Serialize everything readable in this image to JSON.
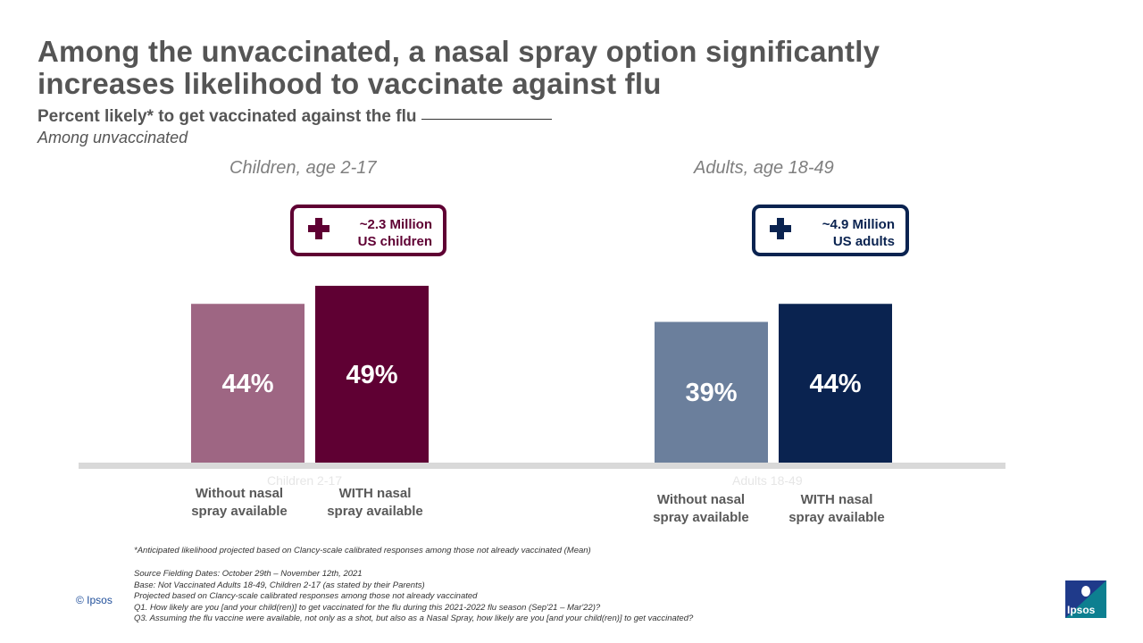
{
  "title": {
    "line1": "Among the unvaccinated, a nasal spray option significantly",
    "line2": "increases likelihood to vaccinate against flu"
  },
  "subtitle": "Percent likely*  to get vaccinated against the flu",
  "base_note": "Among unvaccinated",
  "groups": [
    {
      "label": "Children, age 2-17",
      "ghost_label": "Children 2-17",
      "callout": {
        "line1": "~2.3 Million",
        "line2": "US children",
        "color": "#5f0033"
      },
      "bar_labels": [
        {
          "line1": "Without nasal",
          "line2": "spray available"
        },
        {
          "line1": "WITH nasal",
          "line2": "spray available"
        }
      ]
    },
    {
      "label": "Adults, age 18-49",
      "ghost_label": "Adults 18-49",
      "callout": {
        "line1": "~4.9 Million",
        "line2": "US adults",
        "color": "#0a2350"
      },
      "bar_labels": [
        {
          "line1": "Without nasal",
          "line2": "spray available"
        },
        {
          "line1": "WITH nasal",
          "line2": "spray available"
        }
      ]
    }
  ],
  "chart_data": {
    "type": "bar",
    "categories": [
      "Children 2-17",
      "Adults 18-49"
    ],
    "series": [
      {
        "name": "Without nasal spray available",
        "values": [
          44,
          39
        ],
        "colors": [
          "#9e6683",
          "#6b7f9c"
        ]
      },
      {
        "name": "WITH nasal spray available",
        "values": [
          49,
          44
        ],
        "colors": [
          "#5f0033",
          "#0a2350"
        ]
      }
    ],
    "data_labels": [
      [
        "44%",
        "39%"
      ],
      [
        "49%",
        "44%"
      ]
    ],
    "ylim": [
      0,
      100
    ],
    "axis_color": "#d9d9d9",
    "grid": false
  },
  "footnote": "*Anticipated likelihood projected based on Clancy-scale calibrated responses among those not already vaccinated (Mean)",
  "sources": [
    "Source Fielding Dates: October 29th – November 12th, 2021",
    "Base: Not Vaccinated Adults 18-49, Children 2-17 (as stated by their Parents)",
    "Projected based on Clancy-scale calibrated responses among those not already vaccinated",
    "Q1. How likely are you [and your child(ren)] to get vaccinated for the flu during this 2021-2022 flu season (Sep'21 – Mar'22)?",
    "Q3.  Assuming the flu vaccine were available, not only as a shot, but also as a Nasal Spray, how likely are you [and your child(ren)] to get vaccinated?"
  ],
  "copyright": "© Ipsos",
  "logo_text": "Ipsos"
}
